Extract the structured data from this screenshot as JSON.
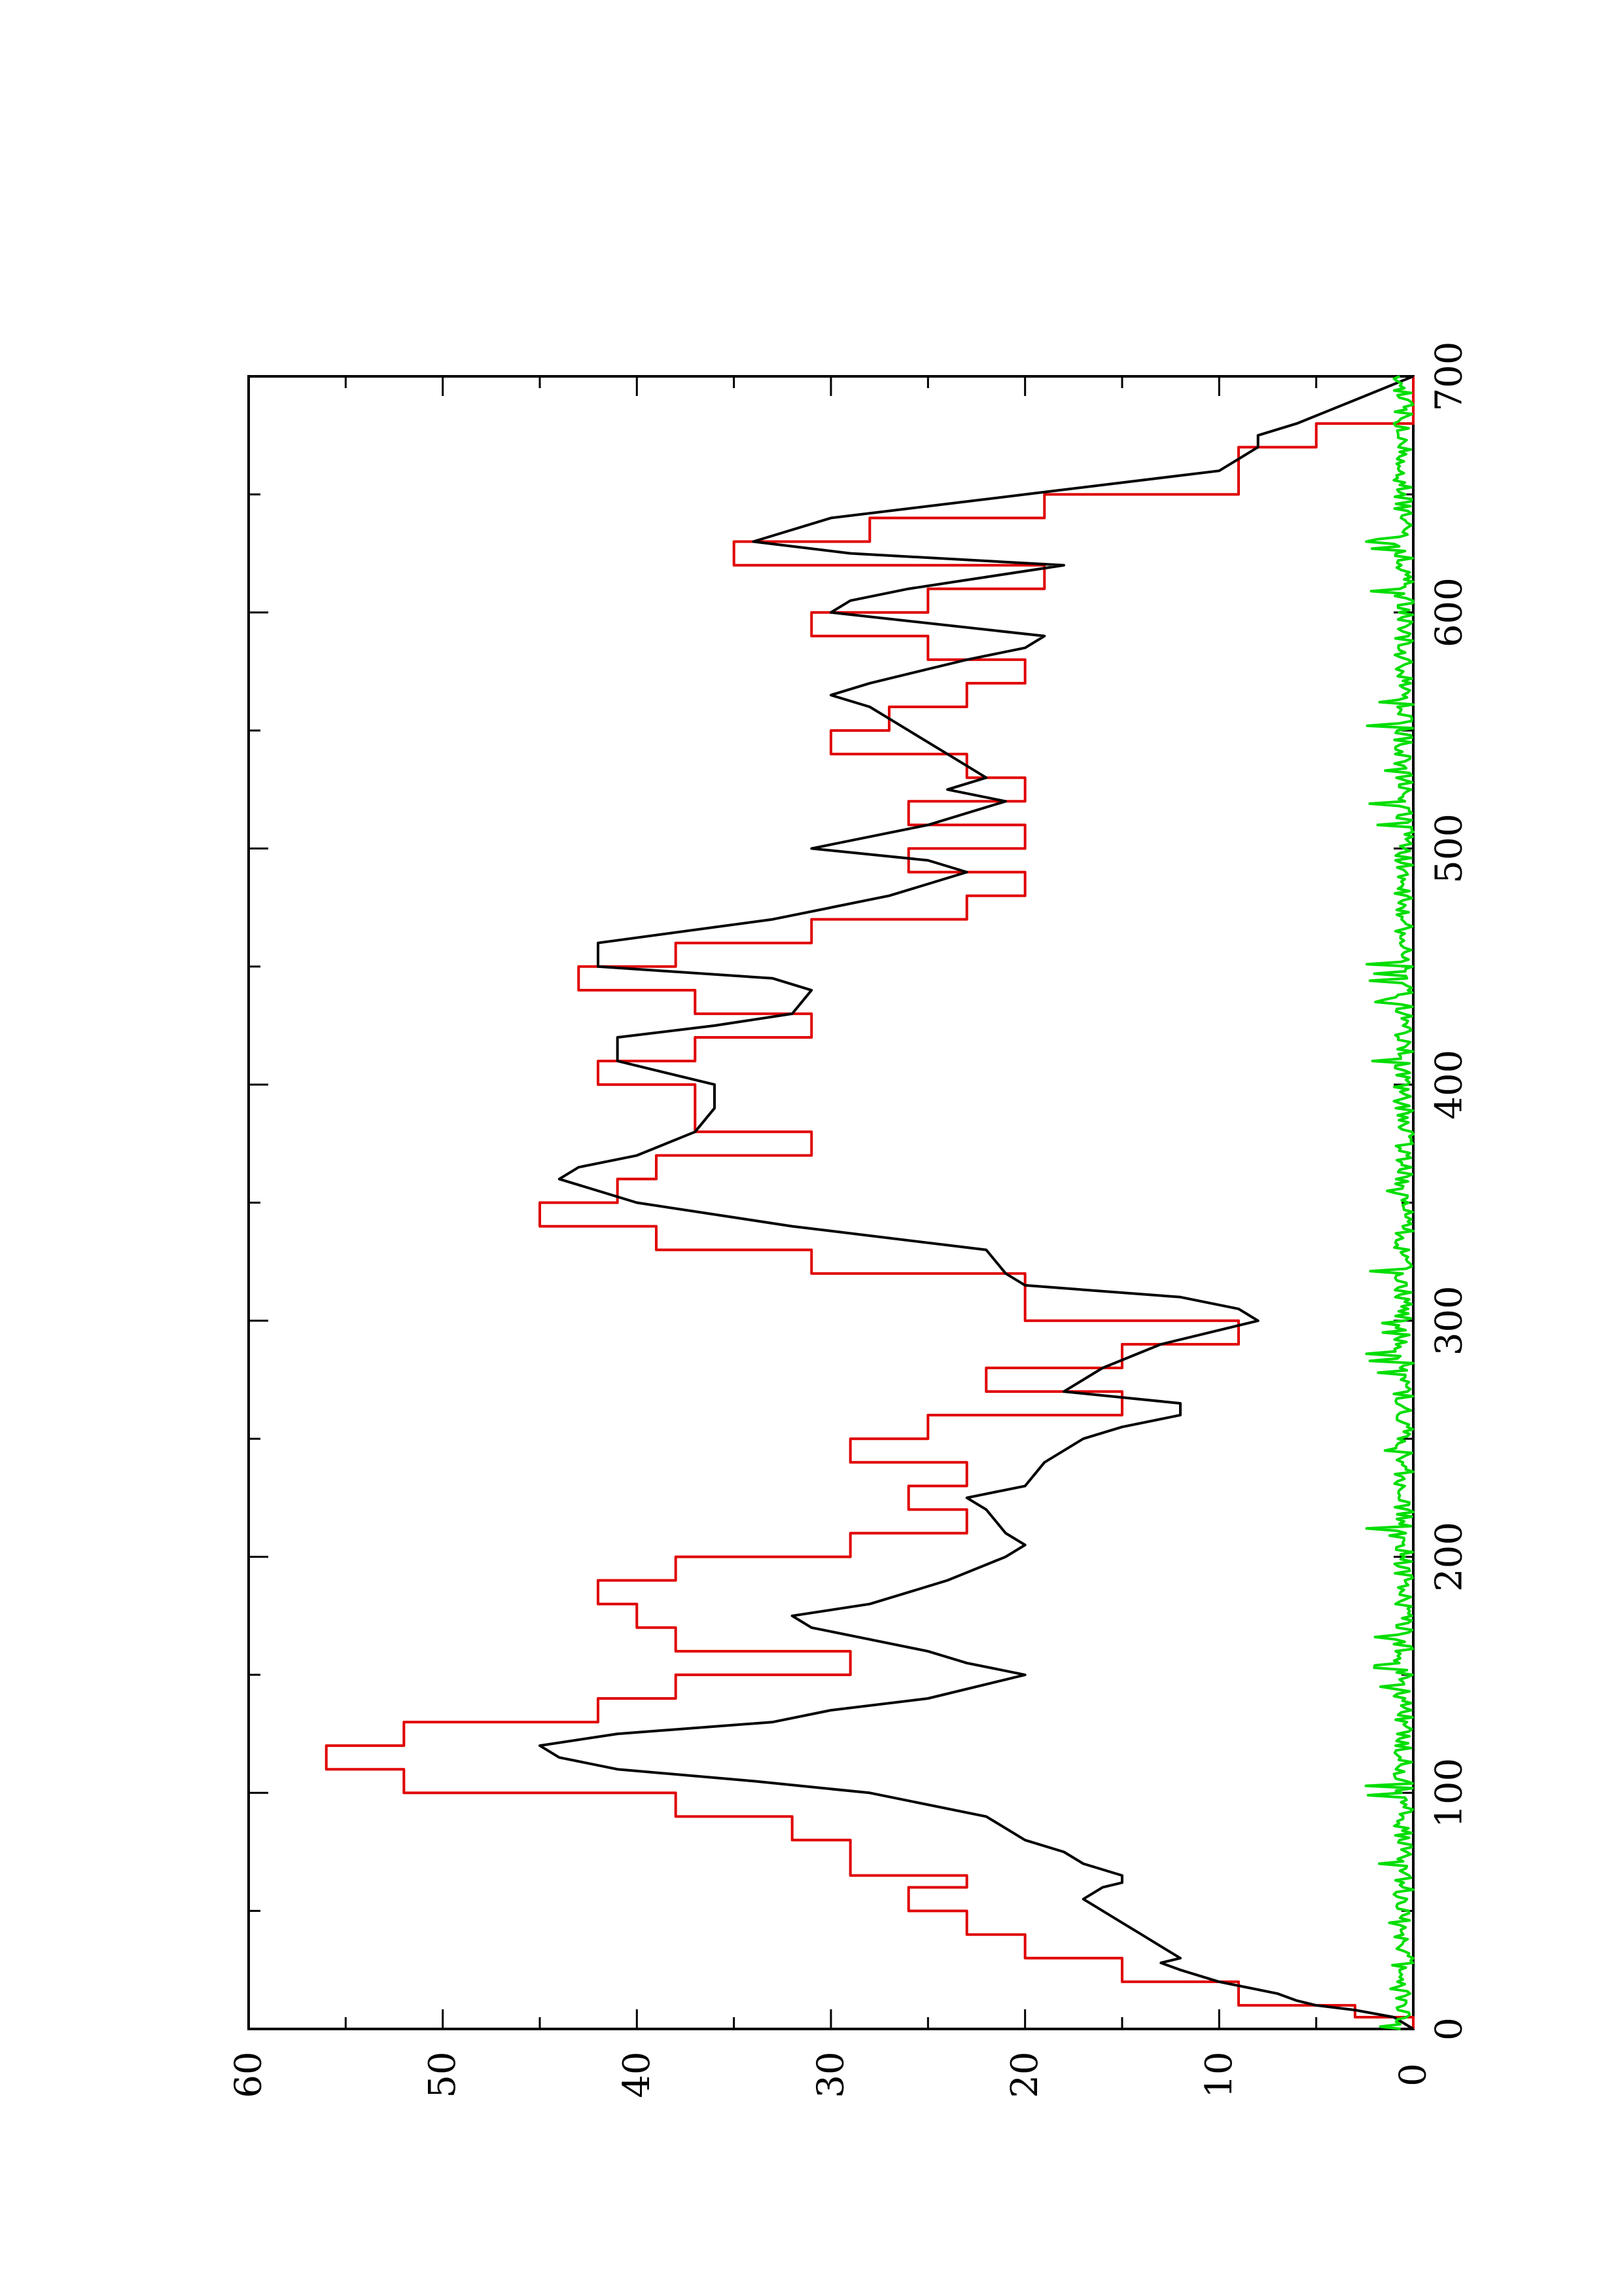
{
  "chart_data": {
    "type": "line",
    "title": "",
    "xlabel": "",
    "ylabel": "",
    "orientation": "rotated 90 degrees counter-clockwise",
    "xlim": [
      0,
      700
    ],
    "ylim": [
      0,
      60
    ],
    "x_ticks": [
      "0",
      "100",
      "200",
      "300",
      "400",
      "500",
      "600",
      "700"
    ],
    "y_ticks": [
      "0",
      "10",
      "20",
      "30",
      "40",
      "50",
      "60"
    ],
    "grid": false,
    "legend": "none",
    "series": [
      {
        "color": "#e00000",
        "step": true,
        "x": [
          0,
          5,
          10,
          20,
          30,
          40,
          50,
          60,
          65,
          70,
          80,
          90,
          100,
          110,
          120,
          130,
          140,
          150,
          160,
          170,
          180,
          190,
          200,
          210,
          220,
          230,
          240,
          250,
          260,
          270,
          280,
          290,
          300,
          310,
          320,
          330,
          340,
          350,
          360,
          370,
          380,
          390,
          400,
          410,
          420,
          430,
          440,
          450,
          460,
          470,
          480,
          490,
          500,
          510,
          520,
          530,
          540,
          550,
          560,
          570,
          580,
          590,
          600,
          610,
          620,
          630,
          640,
          650,
          660,
          670,
          680,
          690,
          700
        ],
        "values": [
          0,
          3,
          9,
          15,
          20,
          23,
          26,
          23,
          29,
          29,
          32,
          38,
          52,
          56,
          52,
          42,
          38,
          29,
          38,
          40,
          42,
          38,
          29,
          23,
          26,
          23,
          29,
          25,
          15,
          22,
          15,
          9,
          20,
          20,
          31,
          39,
          45,
          41,
          39,
          31,
          37,
          37,
          42,
          37,
          31,
          37,
          43,
          38,
          31,
          23,
          20,
          26,
          20,
          26,
          20,
          23,
          30,
          27,
          23,
          20,
          25,
          31,
          25,
          19,
          35,
          28,
          19,
          9,
          9,
          5,
          0,
          0,
          0
        ]
      },
      {
        "color": "#000000",
        "step": false,
        "x": [
          0,
          5,
          8,
          10,
          12,
          15,
          20,
          25,
          28,
          30,
          35,
          40,
          45,
          50,
          55,
          60,
          62,
          65,
          70,
          75,
          80,
          90,
          100,
          105,
          110,
          115,
          120,
          125,
          130,
          135,
          140,
          150,
          155,
          160,
          165,
          170,
          175,
          180,
          185,
          190,
          200,
          205,
          210,
          220,
          225,
          230,
          240,
          250,
          255,
          260,
          265,
          270,
          275,
          280,
          290,
          300,
          305,
          310,
          315,
          320,
          330,
          340,
          350,
          360,
          365,
          370,
          380,
          390,
          395,
          400,
          410,
          420,
          425,
          430,
          440,
          445,
          450,
          460,
          470,
          480,
          490,
          495,
          500,
          510,
          520,
          525,
          530,
          540,
          545,
          550,
          560,
          565,
          570,
          580,
          585,
          590,
          600,
          605,
          610,
          615,
          620,
          625,
          630,
          640,
          650,
          660,
          670,
          675,
          680,
          690,
          700
        ],
        "values": [
          0,
          1,
          3,
          5,
          6,
          7,
          10,
          12,
          13,
          12,
          13,
          14,
          15,
          16,
          17,
          16,
          15,
          15,
          17,
          18,
          20,
          22,
          28,
          34,
          41,
          44,
          45,
          41,
          33,
          30,
          25,
          20,
          23,
          25,
          28,
          31,
          32,
          28,
          26,
          24,
          21,
          20,
          21,
          22,
          23,
          20,
          19,
          17,
          15,
          12,
          12,
          18,
          17,
          16,
          13,
          8,
          9,
          12,
          20,
          21,
          22,
          32,
          40,
          44,
          43,
          40,
          37,
          36,
          36,
          36,
          41,
          41,
          36,
          32,
          31,
          33,
          42,
          42,
          33,
          27,
          23,
          25,
          31,
          25,
          21,
          24,
          22,
          24,
          25,
          26,
          28,
          30,
          28,
          23,
          20,
          19,
          30,
          29,
          26,
          22,
          18,
          29,
          34,
          30,
          20,
          10,
          8,
          8,
          6,
          3,
          0
        ]
      },
      {
        "color": "#00dd00",
        "step": false,
        "noise": true,
        "x_range": [
          0,
          700
        ],
        "typical_range": [
          0,
          1
        ],
        "peak": 2.5
      }
    ]
  }
}
